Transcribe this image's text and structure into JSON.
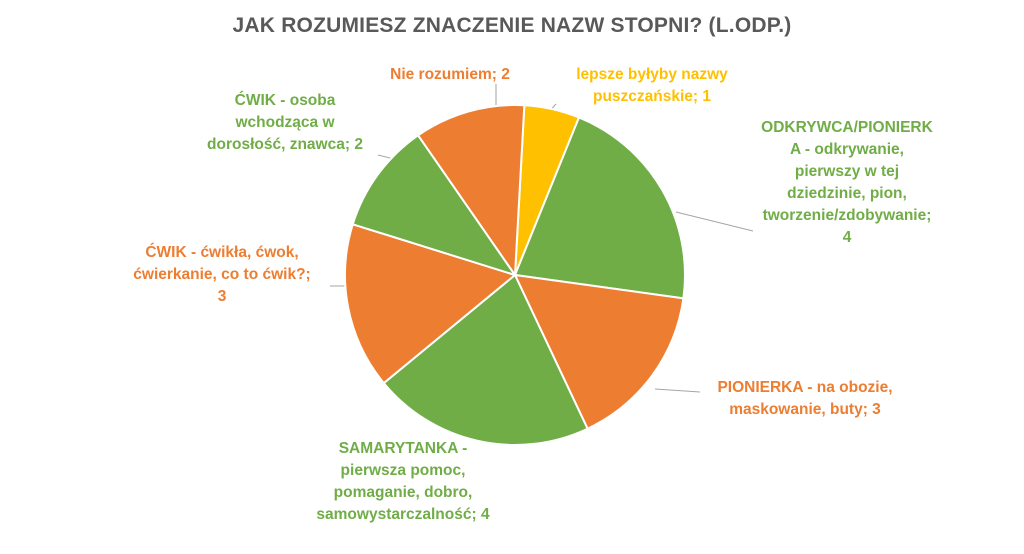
{
  "chart_data": {
    "type": "pie",
    "title": "JAK ROZUMIESZ ZNACZENIE NAZW STOPNI? (L.ODP.)",
    "slices": [
      {
        "label": "lepsze byłyby nazwy\npuszczańskie;  1",
        "value": 1,
        "color": "#FFC000"
      },
      {
        "label": "ODKRYWCA/PIONIERK\nA - odkrywanie,\npierwszy  w tej\ndziedzinie,  pion,\ntworzenie/zdobywanie;\n4",
        "value": 4,
        "color": "#70AD47"
      },
      {
        "label": "PIONIERKA - na obozie,\nmaskowanie,  buty; 3",
        "value": 3,
        "color": "#ED7D31"
      },
      {
        "label": "SAMARYTANKA -\npierwsza pomoc,\npomaganie,  dobro,\nsamowystarczalność;  4",
        "value": 4,
        "color": "#70AD47"
      },
      {
        "label": "ĆWIK - ćwikła, ćwok,\nćwierkanie,  co to ćwik?;\n3",
        "value": 3,
        "color": "#ED7D31"
      },
      {
        "label": "ĆWIK - osoba\nwchodząca  w\ndorosłość,  znawca; 2",
        "value": 2,
        "color": "#70AD47"
      },
      {
        "label": "Nie rozumiem; 2",
        "value": 2,
        "color": "#ED7D31"
      }
    ]
  }
}
